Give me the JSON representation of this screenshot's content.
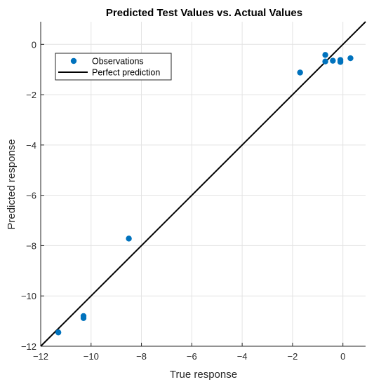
{
  "chart_data": {
    "type": "scatter",
    "title": "Predicted Test Values vs. Actual Values",
    "xlabel": "True response",
    "ylabel": "Predicted response",
    "xlim": [
      -12,
      0.9
    ],
    "ylim": [
      -12,
      0.9
    ],
    "xticks": [
      -12,
      -10,
      -8,
      -6,
      -4,
      -2,
      0
    ],
    "yticks": [
      -12,
      -10,
      -8,
      -6,
      -4,
      -2,
      0
    ],
    "grid": true,
    "legend_position": "top-left",
    "series": [
      {
        "name": "Observations",
        "kind": "scatter",
        "color": "#0072BD",
        "points": [
          {
            "x": -11.3,
            "y": -11.45
          },
          {
            "x": -10.3,
            "y": -10.8
          },
          {
            "x": -10.3,
            "y": -10.88
          },
          {
            "x": -8.5,
            "y": -7.72
          },
          {
            "x": -1.7,
            "y": -1.12
          },
          {
            "x": -0.7,
            "y": -0.42
          },
          {
            "x": -0.7,
            "y": -0.68
          },
          {
            "x": -0.4,
            "y": -0.65
          },
          {
            "x": -0.1,
            "y": -0.62
          },
          {
            "x": -0.1,
            "y": -0.7
          },
          {
            "x": 0.3,
            "y": -0.55
          }
        ]
      },
      {
        "name": "Perfect prediction",
        "kind": "line",
        "color": "#000000",
        "points": [
          {
            "x": -12,
            "y": -12
          },
          {
            "x": 0.9,
            "y": 0.9
          }
        ]
      }
    ]
  }
}
